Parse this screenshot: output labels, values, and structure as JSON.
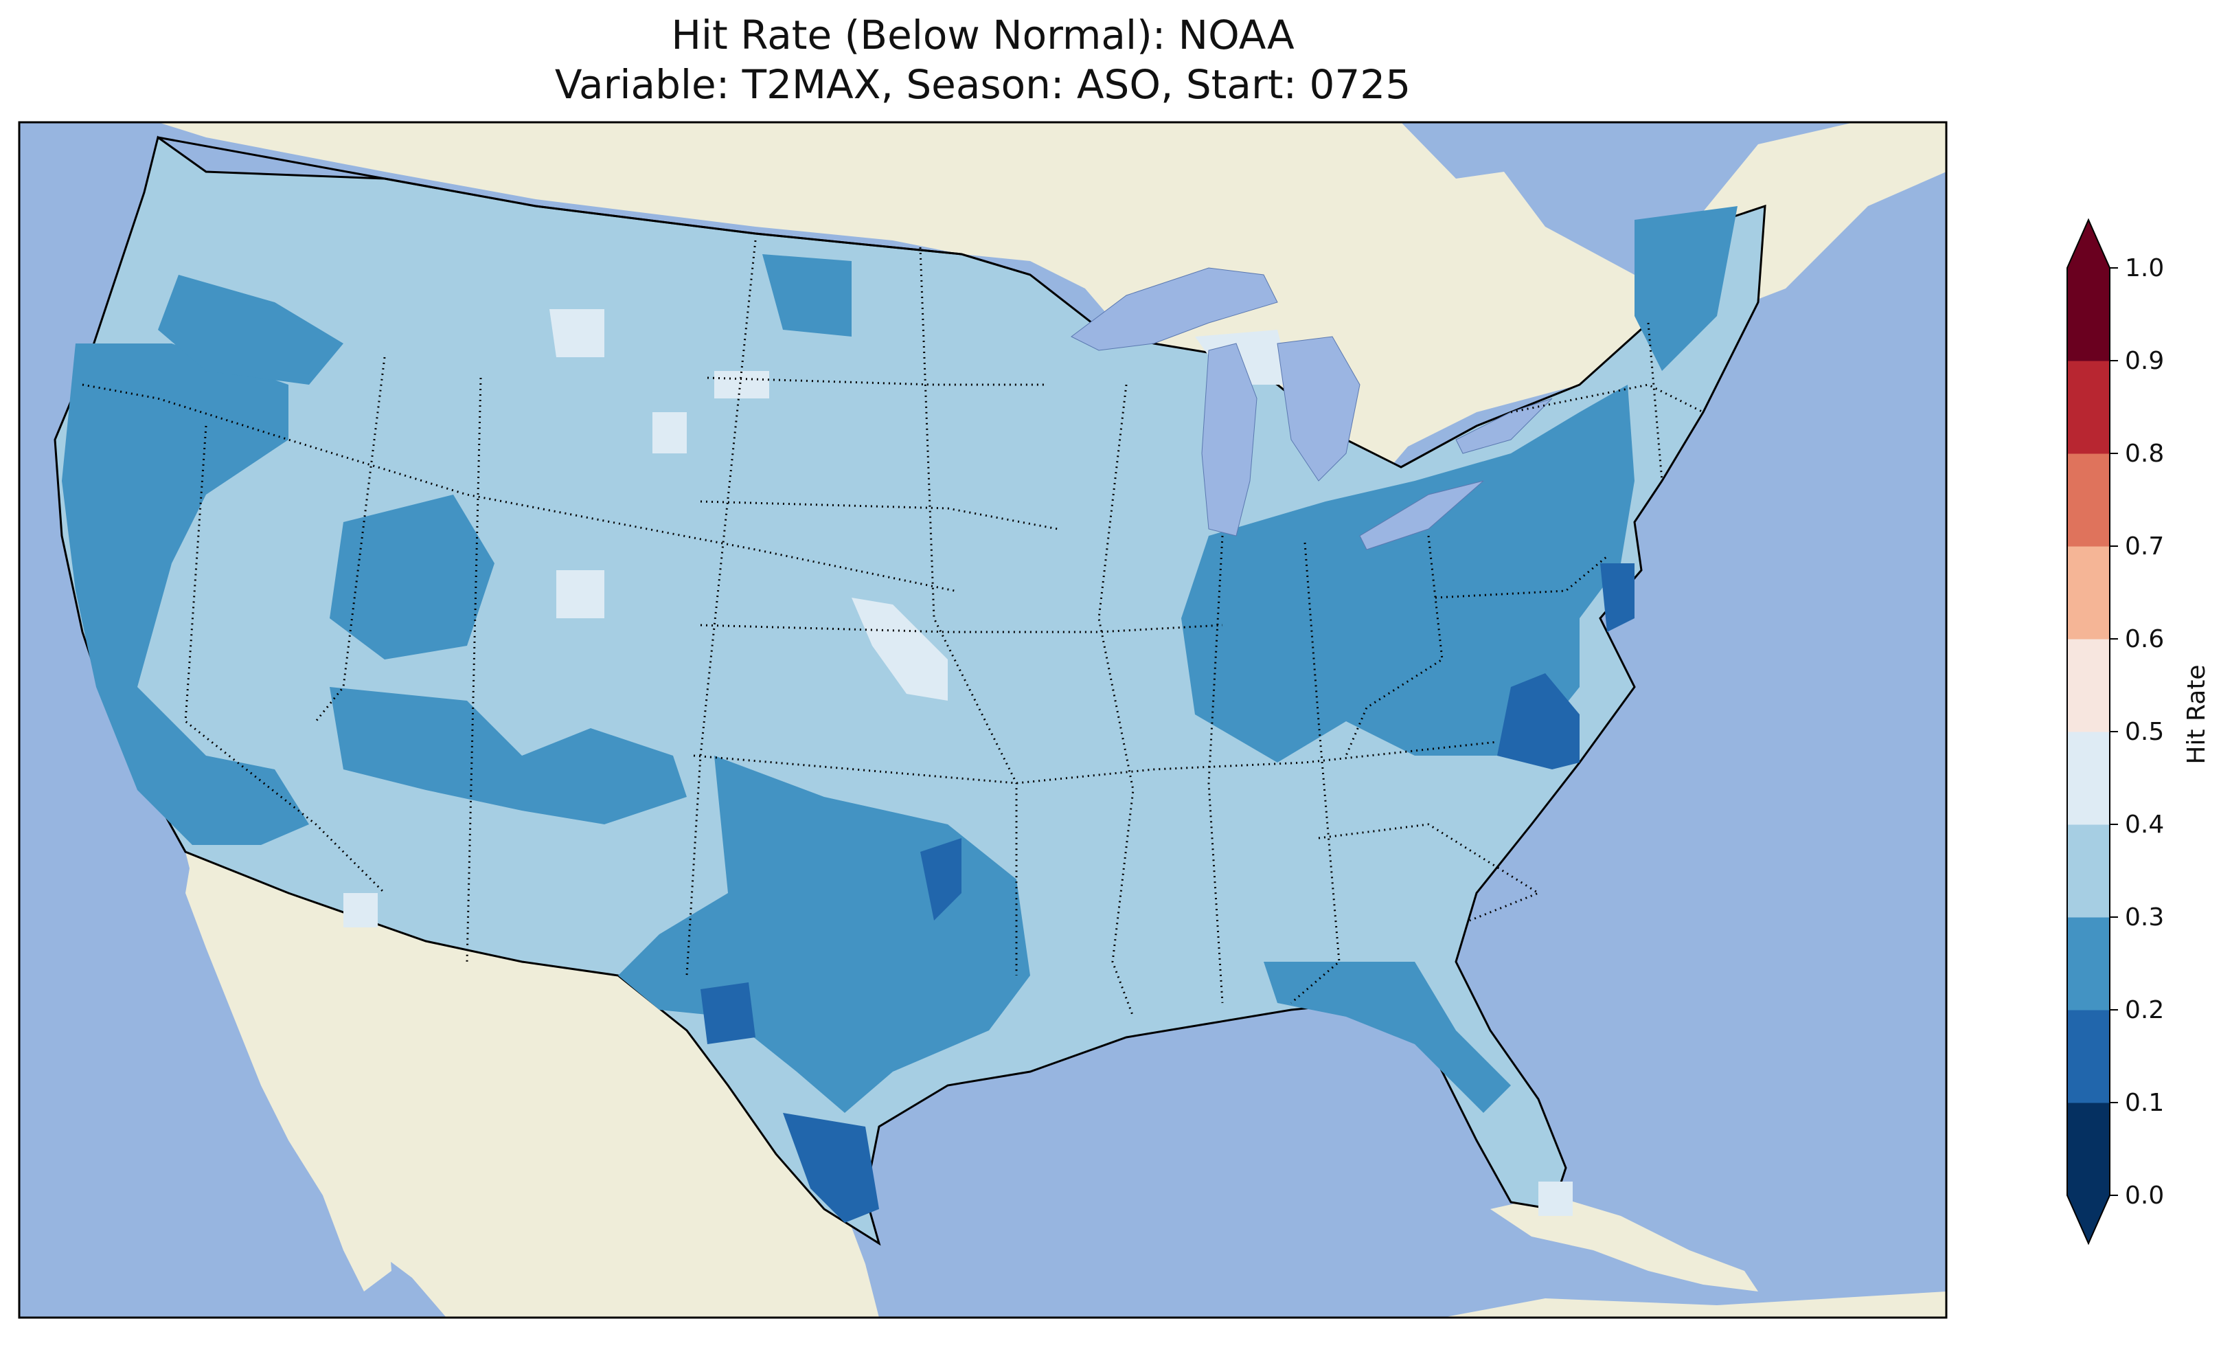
{
  "title_line1": "Hit Rate (Below Normal): NOAA",
  "title_line2": "Variable: T2MAX, Season: ASO, Start: 0725",
  "colorbar": {
    "label": "Hit Rate",
    "ticks": [
      "0.0",
      "0.1",
      "0.2",
      "0.3",
      "0.4",
      "0.5",
      "0.6",
      "0.7",
      "0.8",
      "0.9",
      "1.0"
    ],
    "colors": [
      "#08306b",
      "#2166ac",
      "#4393c3",
      "#92c5de",
      "#d1e5f0",
      "#f7f7f7",
      "#fddbc7",
      "#f4a582",
      "#d6604d",
      "#b2182b",
      "#67001f"
    ],
    "bins": [
      {
        "range": [
          0.0,
          0.1
        ],
        "color": "#053061"
      },
      {
        "range": [
          0.1,
          0.2
        ],
        "color": "#2166ac"
      },
      {
        "range": [
          0.2,
          0.3
        ],
        "color": "#4393c3"
      },
      {
        "range": [
          0.3,
          0.4
        ],
        "color": "#a6cee3"
      },
      {
        "range": [
          0.4,
          0.5
        ],
        "color": "#deebf4"
      },
      {
        "range": [
          0.5,
          0.6
        ],
        "color": "#f7e6df"
      },
      {
        "range": [
          0.6,
          0.7
        ],
        "color": "#f5b596"
      },
      {
        "range": [
          0.7,
          0.8
        ],
        "color": "#df735c"
      },
      {
        "range": [
          0.8,
          0.9
        ],
        "color": "#b82631"
      },
      {
        "range": [
          0.9,
          1.0
        ],
        "color": "#6a001f"
      }
    ],
    "extend": "both"
  },
  "map": {
    "ocean_color": "#97b5e0",
    "land_color": "#efedd9",
    "lake_color": "#9bb5e2"
  }
}
